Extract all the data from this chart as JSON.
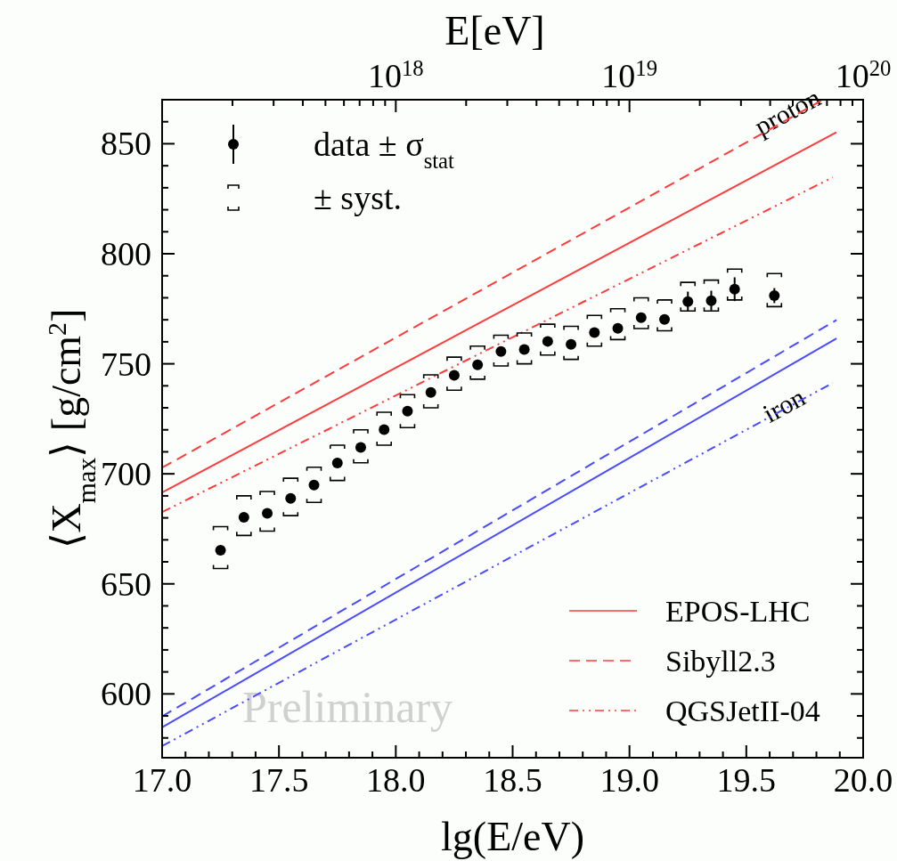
{
  "chart_data": {
    "type": "scatter",
    "xlabel": "lg(E/eV)",
    "ylabel": "⟨X$_{max}$⟩ [g/cm$^{2}$]",
    "x2label": "E[eV]",
    "xlim": [
      17.0,
      20.0
    ],
    "ylim": [
      571,
      870
    ],
    "xticks": [
      {
        "value": 17.0,
        "label": "17.0"
      },
      {
        "value": 17.1,
        "label": null
      },
      {
        "value": 17.2,
        "label": null
      },
      {
        "value": 17.3,
        "label": null
      },
      {
        "value": 17.4,
        "label": null
      },
      {
        "value": 17.5,
        "label": "17.5"
      },
      {
        "value": 17.6,
        "label": null
      },
      {
        "value": 17.7,
        "label": null
      },
      {
        "value": 17.8,
        "label": null
      },
      {
        "value": 17.9,
        "label": null
      },
      {
        "value": 18.0,
        "label": "18.0"
      },
      {
        "value": 18.1,
        "label": null
      },
      {
        "value": 18.2,
        "label": null
      },
      {
        "value": 18.3,
        "label": null
      },
      {
        "value": 18.4,
        "label": null
      },
      {
        "value": 18.5,
        "label": "18.5"
      },
      {
        "value": 18.6,
        "label": null
      },
      {
        "value": 18.7,
        "label": null
      },
      {
        "value": 18.8,
        "label": null
      },
      {
        "value": 18.9,
        "label": null
      },
      {
        "value": 19.0,
        "label": "19.0"
      },
      {
        "value": 19.1,
        "label": null
      },
      {
        "value": 19.2,
        "label": null
      },
      {
        "value": 19.3,
        "label": null
      },
      {
        "value": 19.4,
        "label": null
      },
      {
        "value": 19.5,
        "label": "19.5"
      },
      {
        "value": 19.6,
        "label": null
      },
      {
        "value": 19.7,
        "label": null
      },
      {
        "value": 19.8,
        "label": null
      },
      {
        "value": 19.9,
        "label": null
      },
      {
        "value": 20.0,
        "label": "20.0"
      }
    ],
    "yticks": [
      {
        "value": 580,
        "label": null
      },
      {
        "value": 590,
        "label": null
      },
      600,
      {
        "value": 610,
        "label": null
      },
      {
        "value": 620,
        "label": null
      },
      {
        "value": 630,
        "label": null
      },
      {
        "value": 640,
        "label": null
      },
      650,
      {
        "value": 660,
        "label": null
      },
      {
        "value": 670,
        "label": null
      },
      {
        "value": 680,
        "label": null
      },
      {
        "value": 690,
        "label": null
      },
      700,
      {
        "value": 710,
        "label": null
      },
      {
        "value": 720,
        "label": null
      },
      {
        "value": 730,
        "label": null
      },
      {
        "value": 740,
        "label": null
      },
      750,
      {
        "value": 760,
        "label": null
      },
      {
        "value": 770,
        "label": null
      },
      {
        "value": 780,
        "label": null
      },
      {
        "value": 790,
        "label": null
      },
      800,
      {
        "value": 810,
        "label": null
      },
      {
        "value": 820,
        "label": null
      },
      {
        "value": 830,
        "label": null
      },
      {
        "value": 840,
        "label": null
      },
      850,
      {
        "value": 860,
        "label": null
      },
      {
        "value": 870,
        "label": null
      }
    ],
    "x2lim": [
      1e+17,
      1e+20
    ],
    "log": "x2",
    "x2ticks": [
      {
        "value": 2e+17,
        "label": null
      },
      {
        "value": 3e+17,
        "label": null
      },
      {
        "value": 4e+17,
        "label": null
      },
      {
        "value": 5e+17,
        "label": null
      },
      {
        "value": 6e+17,
        "label": null
      },
      {
        "value": 7e+17,
        "label": null
      },
      {
        "value": 8e+17,
        "label": null
      },
      {
        "value": 9e+17,
        "label": null
      },
      {
        "value": 1e+18,
        "label": "10$^{18}$"
      },
      {
        "value": 2e+18,
        "label": null
      },
      {
        "value": 3e+18,
        "label": null
      },
      {
        "value": 4e+18,
        "label": null
      },
      {
        "value": 5e+18,
        "label": null
      },
      {
        "value": 6e+18,
        "label": null
      },
      {
        "value": 7e+18,
        "label": null
      },
      {
        "value": 8e+18,
        "label": null
      },
      {
        "value": 9e+18,
        "label": null
      },
      {
        "value": 1e+19,
        "label": "10$^{19}$"
      },
      {
        "value": 2e+19,
        "label": null
      },
      {
        "value": 3e+19,
        "label": null
      },
      {
        "value": 4e+19,
        "label": null
      },
      {
        "value": 5e+19,
        "label": null
      },
      {
        "value": 6e+19,
        "label": null
      },
      {
        "value": 7e+19,
        "label": null
      },
      {
        "value": 8e+19,
        "label": null
      },
      {
        "value": 9e+19,
        "label": null
      },
      {
        "value": 1e+20,
        "label": "10$^{20}$"
      }
    ],
    "x": [
      17.25,
      17.35,
      17.45,
      17.55,
      17.65,
      17.75,
      17.85,
      17.95,
      18.05,
      18.15,
      18.25,
      18.35,
      18.45,
      18.55,
      18.65,
      18.75,
      18.85,
      18.95,
      19.05,
      19.15,
      19.25,
      19.35,
      19.45,
      19.62
    ],
    "legend": "top left",
    "grid": false,
    "series": [
      {
        "name": "EPOS-LHC",
        "type": "line",
        "color": "#ff3b3b",
        "line_style": "solid",
        "x": [
          17.0,
          19.885
        ],
        "values": [
          691.5,
          855.2
        ]
      },
      {
        "name": "Sibyll2.3",
        "type": "line",
        "color": "#ff3b3b",
        "line_style": "dashed",
        "x": [
          17.0,
          19.82
        ],
        "values": [
          702.8,
          869.5
        ]
      },
      {
        "name": "QGSJetII-04",
        "type": "line",
        "color": "#ff3b3b",
        "line_style": "dotted",
        "x": [
          17.0,
          19.87
        ],
        "values": [
          682.6,
          834.7
        ]
      },
      {
        "type": "line",
        "color": "#4a4aff",
        "line_style": "solid",
        "x": [
          17.0,
          19.886
        ],
        "values": [
          584.8,
          761.5
        ]
      },
      {
        "type": "line",
        "color": "#4a4aff",
        "line_style": "dashed",
        "x": [
          17.0,
          19.886
        ],
        "values": [
          589.8,
          769.9
        ]
      },
      {
        "type": "line",
        "color": "#4a4aff",
        "line_style": "dotted",
        "x": [
          17.0,
          19.87
        ],
        "values": [
          576.3,
          741.3
        ]
      },
      {
        "name": "data ± σ$_{stat}$",
        "color": "#000000",
        "marker": "circle",
        "values": [
          665.3,
          680.2,
          682.1,
          688.8,
          694.9,
          704.9,
          712.0,
          720.1,
          728.5,
          737.0,
          744.8,
          749.5,
          755.6,
          756.5,
          760.2,
          758.8,
          764.2,
          766.1,
          771.0,
          770.2,
          778.3,
          778.7,
          783.9,
          781.0
        ],
        "errors": [
          1.5,
          1.5,
          1.5,
          1.5,
          1.5,
          1.5,
          1.5,
          1.5,
          1.5,
          1.5,
          1.5,
          1.5,
          1.5,
          1.5,
          2,
          2,
          2,
          2,
          2,
          2,
          4.5,
          4.5,
          5.4,
          3.4
        ]
      },
      {
        "name": "± syst.",
        "type": "bar",
        "color": "#000000",
        "base": [
          657,
          672,
          674,
          681,
          687,
          697,
          705,
          713,
          721,
          730,
          738,
          743,
          749,
          750,
          754,
          752,
          758,
          761,
          766,
          765,
          774,
          774,
          779,
          776
        ],
        "values": [
          19,
          18,
          18,
          17,
          16,
          16,
          15,
          15,
          15,
          15,
          15,
          15,
          14,
          14,
          14,
          15,
          14,
          14,
          14,
          14,
          13,
          14,
          14,
          15
        ]
      }
    ],
    "annotations": [
      "proton",
      "iron",
      "Preliminary"
    ]
  }
}
